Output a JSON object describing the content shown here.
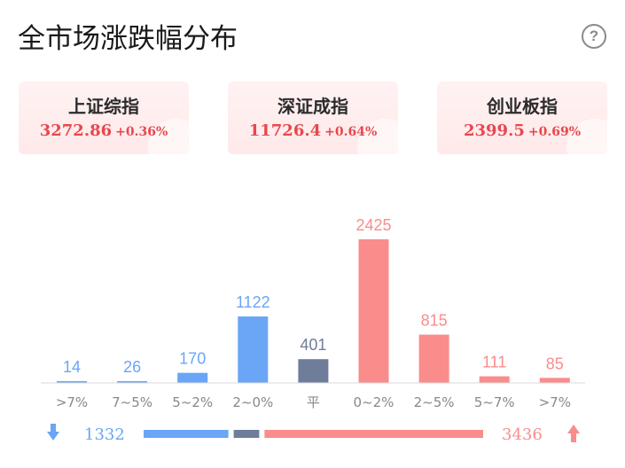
{
  "title": "全市场涨跌幅分布",
  "help_icon": "help-icon",
  "indices": [
    {
      "name": "上证综指",
      "value": "3272.86",
      "change": "+0.36%"
    },
    {
      "name": "深证成指",
      "value": "11726.4",
      "change": "+0.64%"
    },
    {
      "name": "创业板指",
      "value": "2399.5",
      "change": "+0.69%"
    }
  ],
  "colors": {
    "down": "#6aa5f6",
    "flat": "#6e7d99",
    "up": "#fa8c8c",
    "index_red": "#e8474d"
  },
  "chart_data": {
    "type": "bar",
    "categories": [
      ">7%",
      "7~5%",
      "5~2%",
      "2~0%",
      "平",
      "0~2%",
      "2~5%",
      "5~7%",
      ">7%"
    ],
    "values": [
      14,
      26,
      170,
      1122,
      401,
      2425,
      815,
      111,
      85
    ],
    "groups": [
      "down",
      "down",
      "down",
      "down",
      "flat",
      "up",
      "up",
      "up",
      "up"
    ]
  },
  "summary": {
    "down_count": "1332",
    "flat_count": 401,
    "up_count": "3436",
    "down_icon": "arrow-down-icon",
    "up_icon": "arrow-up-icon"
  }
}
